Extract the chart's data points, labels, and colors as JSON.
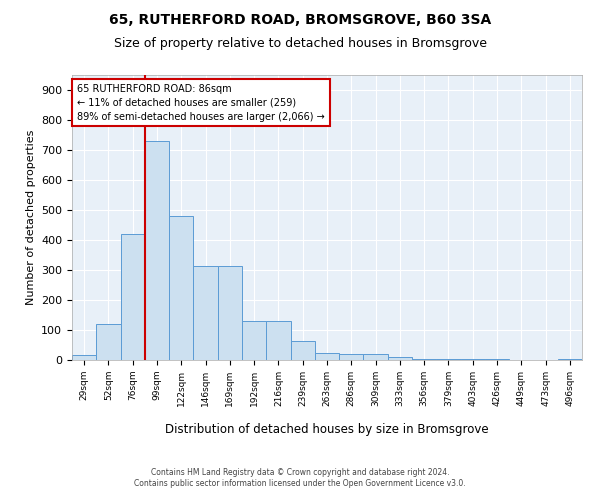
{
  "title": "65, RUTHERFORD ROAD, BROMSGROVE, B60 3SA",
  "subtitle": "Size of property relative to detached houses in Bromsgrove",
  "xlabel": "Distribution of detached houses by size in Bromsgrove",
  "ylabel": "Number of detached properties",
  "categories": [
    "29sqm",
    "52sqm",
    "76sqm",
    "99sqm",
    "122sqm",
    "146sqm",
    "169sqm",
    "192sqm",
    "216sqm",
    "239sqm",
    "263sqm",
    "286sqm",
    "309sqm",
    "333sqm",
    "356sqm",
    "379sqm",
    "403sqm",
    "426sqm",
    "449sqm",
    "473sqm",
    "496sqm"
  ],
  "values": [
    18,
    120,
    420,
    730,
    480,
    315,
    315,
    130,
    130,
    65,
    25,
    20,
    20,
    10,
    5,
    5,
    3,
    2,
    0,
    0,
    5
  ],
  "bar_color": "#cce0f0",
  "bar_edge_color": "#5b9bd5",
  "background_color": "#e8f0f8",
  "grid_color": "#ffffff",
  "annotation_text": "65 RUTHERFORD ROAD: 86sqm\n← 11% of detached houses are smaller (259)\n89% of semi-detached houses are larger (2,066) →",
  "annotation_box_color": "#ffffff",
  "annotation_box_edge_color": "#cc0000",
  "property_line_x": 2.5,
  "ylim": [
    0,
    950
  ],
  "yticks": [
    0,
    100,
    200,
    300,
    400,
    500,
    600,
    700,
    800,
    900
  ],
  "footer_line1": "Contains HM Land Registry data © Crown copyright and database right 2024.",
  "footer_line2": "Contains public sector information licensed under the Open Government Licence v3.0."
}
